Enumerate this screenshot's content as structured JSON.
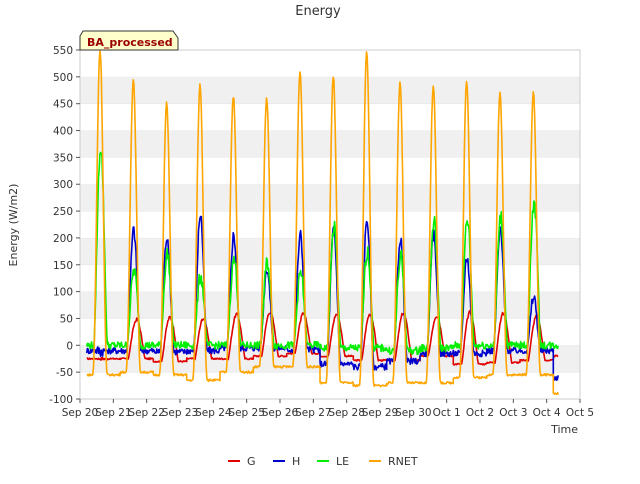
{
  "chart_data": {
    "type": "line",
    "title": "Energy",
    "badge": "BA_processed",
    "xlabel": "Time",
    "ylabel": "Energy (W/m2)",
    "xlim": [
      0,
      15
    ],
    "ylim": [
      -100,
      550
    ],
    "grid": "horizontal bands",
    "legend_position": "bottom-center",
    "x_ticks": [
      {
        "value": 0,
        "label": "Sep 20"
      },
      {
        "value": 1,
        "label": "Sep 21"
      },
      {
        "value": 2,
        "label": "Sep 22"
      },
      {
        "value": 3,
        "label": "Sep 23"
      },
      {
        "value": 4,
        "label": "Sep 24"
      },
      {
        "value": 5,
        "label": "Sep 25"
      },
      {
        "value": 6,
        "label": "Sep 26"
      },
      {
        "value": 7,
        "label": "Sep 27"
      },
      {
        "value": 8,
        "label": "Sep 28"
      },
      {
        "value": 9,
        "label": "Sep 29"
      },
      {
        "value": 10,
        "label": "Sep 30"
      },
      {
        "value": 11,
        "label": "Oct 1"
      },
      {
        "value": 12,
        "label": "Oct 2"
      },
      {
        "value": 13,
        "label": "Oct 3"
      },
      {
        "value": 14,
        "label": "Oct 4"
      },
      {
        "value": 15,
        "label": "Oct 5"
      }
    ],
    "y_ticks": [
      -100,
      -50,
      0,
      50,
      100,
      150,
      200,
      250,
      300,
      350,
      400,
      450,
      500,
      550
    ],
    "days": [
      "Sep 20",
      "Sep 21",
      "Sep 22",
      "Sep 23",
      "Sep 24",
      "Sep 25",
      "Sep 26",
      "Sep 27",
      "Sep 28",
      "Sep 29",
      "Sep 30",
      "Oct 1",
      "Oct 2",
      "Oct 3",
      "Oct 4"
    ],
    "series": [
      {
        "name": "G",
        "color": "#e00000",
        "night": [
          -25,
          -25,
          -30,
          -25,
          -25,
          -20,
          -15,
          -20,
          -28,
          -28,
          -20,
          -35,
          -32,
          -28,
          -20
        ],
        "daily_peak": [
          null,
          48,
          52,
          50,
          58,
          62,
          58,
          58,
          58,
          60,
          55,
          62,
          60,
          55,
          null
        ]
      },
      {
        "name": "H",
        "color": "#0000cc",
        "night": [
          -10,
          -10,
          -12,
          -10,
          -5,
          -5,
          -8,
          -35,
          -40,
          -30,
          -15,
          -15,
          -10,
          -10,
          -60
        ],
        "daily_peak": [
          null,
          215,
          205,
          245,
          205,
          145,
          205,
          215,
          235,
          200,
          205,
          165,
          215,
          90,
          null
        ]
      },
      {
        "name": "LE",
        "color": "#00ee00",
        "night": [
          0,
          0,
          0,
          0,
          0,
          0,
          0,
          -5,
          -5,
          -10,
          -5,
          0,
          0,
          0,
          0
        ],
        "daily_peak": [
          370,
          140,
          170,
          130,
          160,
          155,
          135,
          220,
          175,
          165,
          230,
          235,
          240,
          265,
          null
        ]
      },
      {
        "name": "RNET",
        "color": "#ffa500",
        "night": [
          -55,
          -50,
          -55,
          -65,
          -50,
          -40,
          -40,
          -70,
          -75,
          -70,
          -70,
          -60,
          -55,
          -55,
          -90
        ],
        "daily_peak": [
          550,
          495,
          450,
          485,
          465,
          460,
          510,
          500,
          545,
          490,
          485,
          490,
          470,
          470,
          null
        ]
      }
    ]
  }
}
